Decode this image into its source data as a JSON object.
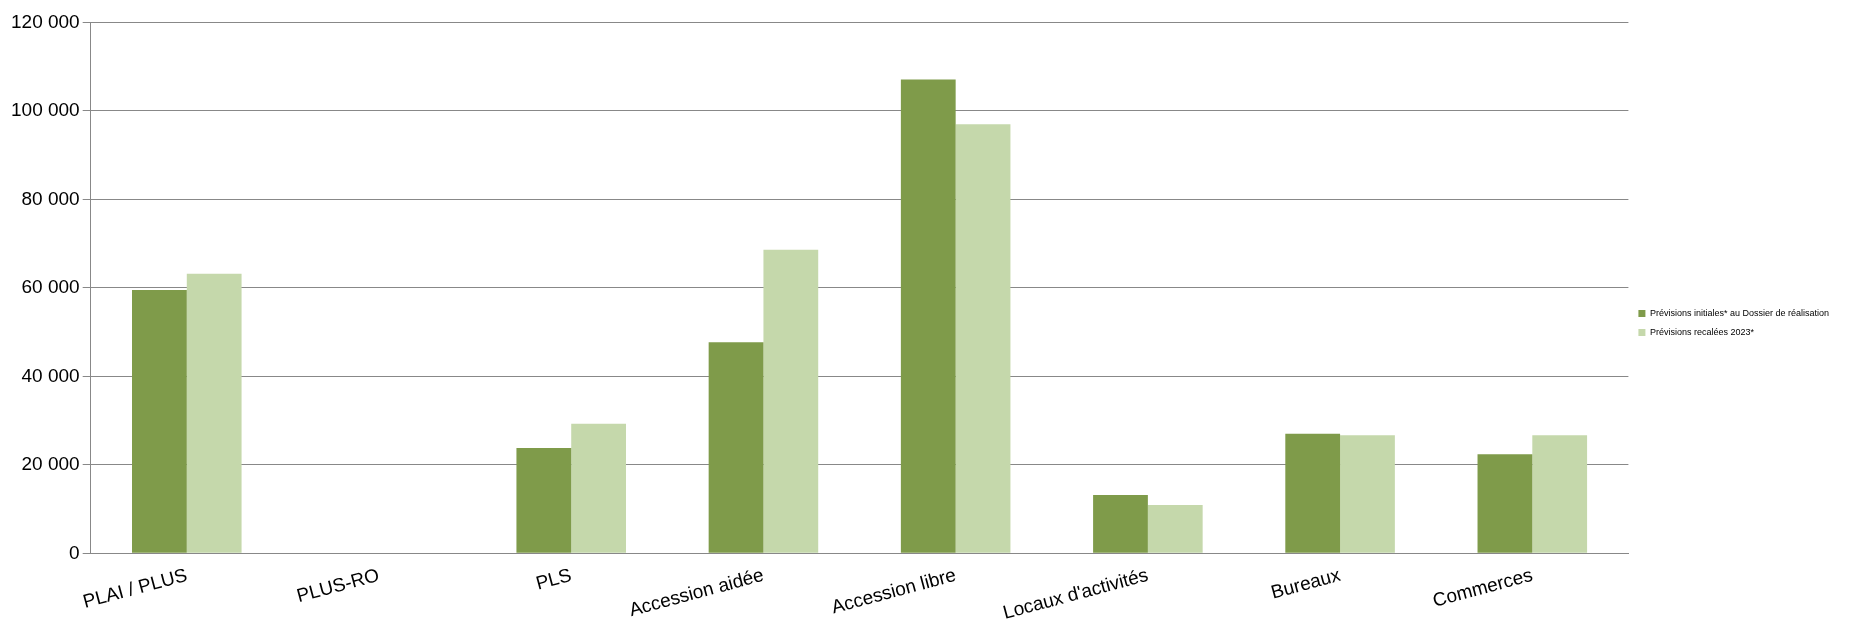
{
  "chart_data": {
    "type": "bar",
    "categories": [
      "PLAI / PLUS",
      "PLUS-RO",
      "PLS",
      "Accession aidée",
      "Accession libre",
      "Locaux d'activités",
      "Bureaux",
      "Commerces"
    ],
    "series": [
      {
        "name": "Prévisions initiales* au Dossier de réalisation",
        "color": "#7f9b4a",
        "values": [
          59500,
          0,
          23800,
          47700,
          107100,
          13200,
          27000,
          22400
        ]
      },
      {
        "name": "Prévisions recalées 2023*",
        "color": "#c5d8ab",
        "values": [
          63200,
          0,
          29300,
          68600,
          97000,
          10900,
          26700,
          26700
        ]
      }
    ],
    "ylim": [
      0,
      120000
    ],
    "yticks": [
      {
        "value": 0,
        "label": "0"
      },
      {
        "value": 20000,
        "label": "20 000"
      },
      {
        "value": 40000,
        "label": "40 000"
      },
      {
        "value": 60000,
        "label": "60 000"
      },
      {
        "value": 80000,
        "label": "80 000"
      },
      {
        "value": 100000,
        "label": "100 000"
      },
      {
        "value": 120000,
        "label": "120 000"
      }
    ],
    "grid": "y",
    "legend": "right"
  }
}
